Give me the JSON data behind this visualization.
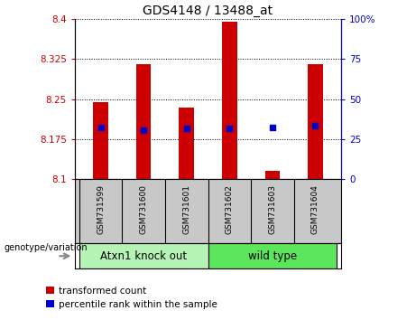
{
  "title": "GDS4148 / 13488_at",
  "samples": [
    "GSM731599",
    "GSM731600",
    "GSM731601",
    "GSM731602",
    "GSM731603",
    "GSM731604"
  ],
  "red_bar_tops": [
    8.245,
    8.315,
    8.235,
    8.395,
    8.115,
    8.315
  ],
  "blue_square_y": [
    8.197,
    8.192,
    8.196,
    8.196,
    8.197,
    8.2
  ],
  "bar_bottom": 8.1,
  "ylim_left": [
    8.1,
    8.4
  ],
  "ylim_right": [
    0,
    100
  ],
  "yticks_left": [
    8.1,
    8.175,
    8.25,
    8.325,
    8.4
  ],
  "ytick_labels_left": [
    "8.1",
    "8.175",
    "8.25",
    "8.325",
    "8.4"
  ],
  "yticks_right": [
    0,
    25,
    50,
    75,
    100
  ],
  "ytick_labels_right": [
    "0",
    "25",
    "50",
    "75",
    "100%"
  ],
  "group_labels": [
    "Atxn1 knock out",
    "wild type"
  ],
  "legend_red_label": "transformed count",
  "legend_blue_label": "percentile rank within the sample",
  "genotype_label": "genotype/variation",
  "red_color": "#cc0000",
  "blue_color": "#0000cc",
  "bar_width": 0.35,
  "plot_bg": "#ffffff",
  "label_bg": "#c8c8c8",
  "group1_color": "#b6f4b6",
  "group2_color": "#5ce65c"
}
